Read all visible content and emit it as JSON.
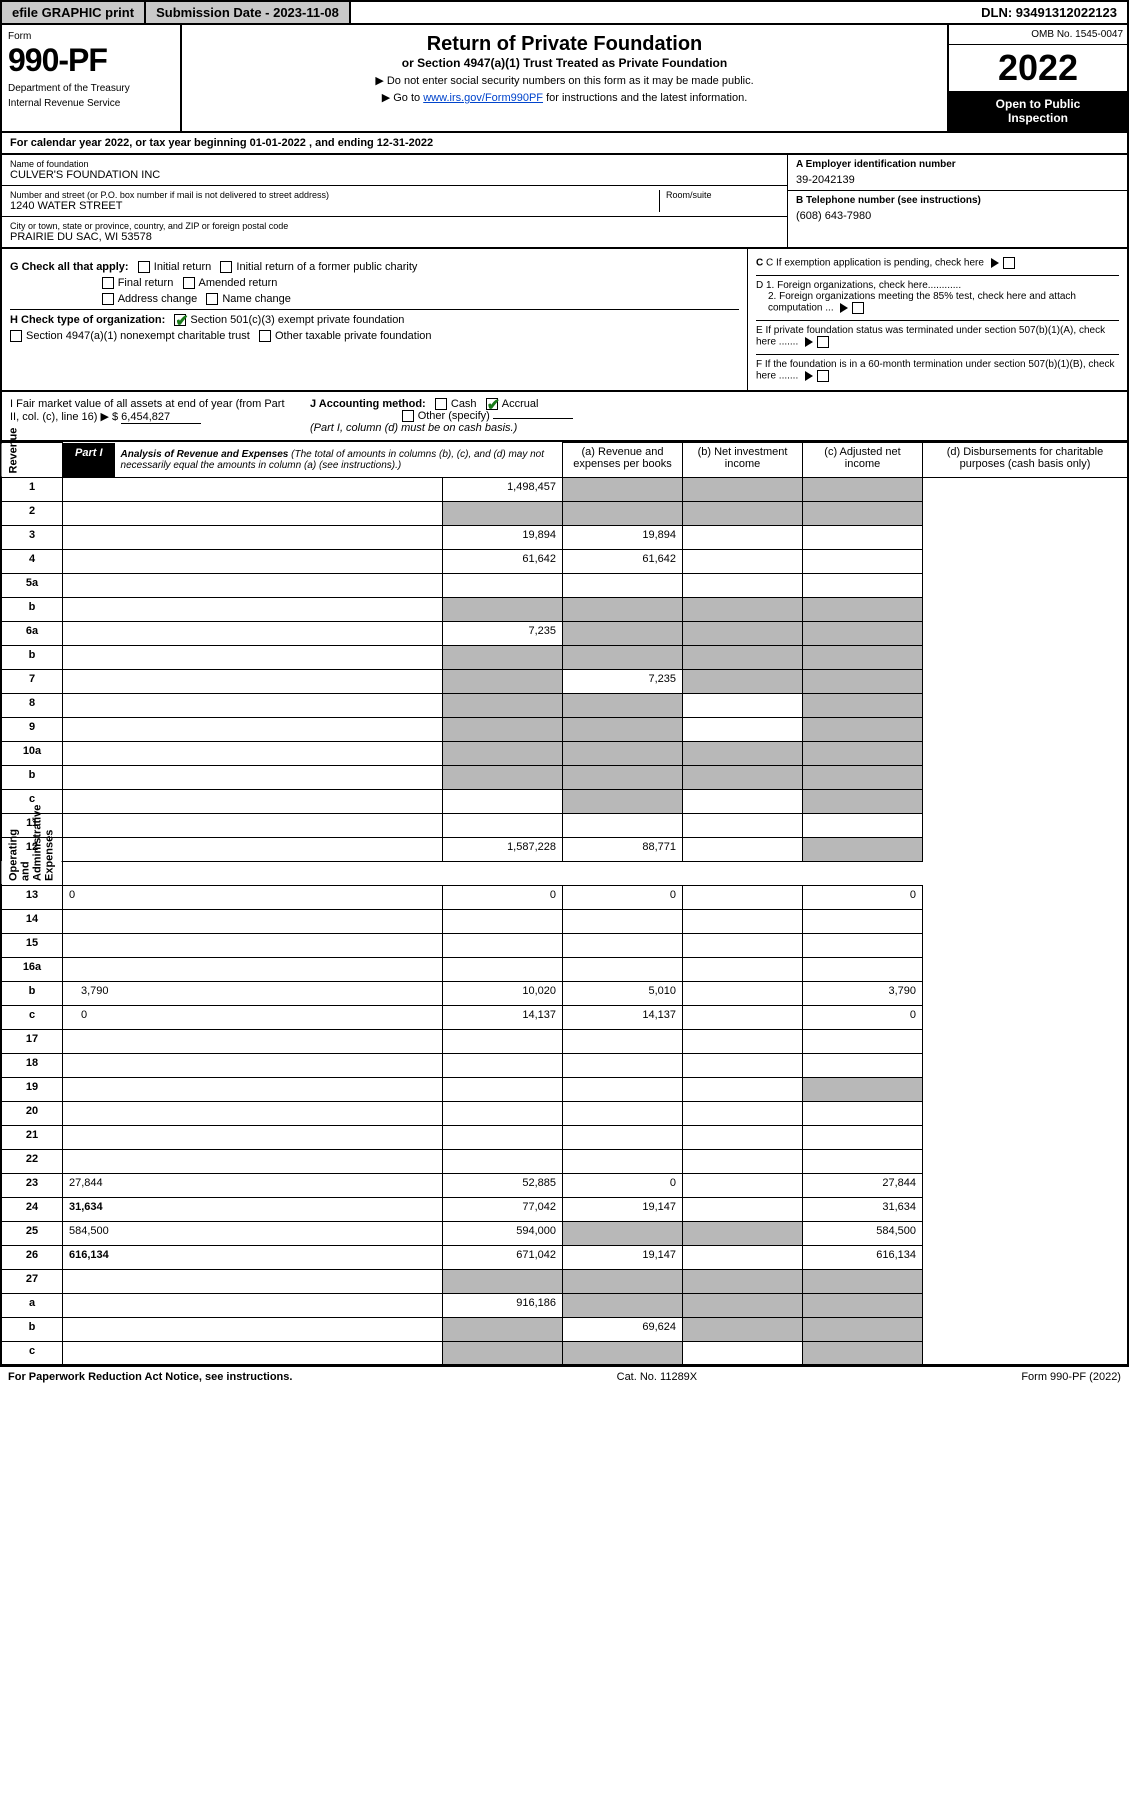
{
  "topbar": {
    "efile": "efile GRAPHIC print",
    "sub_date": "Submission Date - 2023-11-08",
    "dln": "DLN: 93491312022123"
  },
  "header": {
    "form_label": "Form",
    "form_num": "990-PF",
    "dept1": "Department of the Treasury",
    "dept2": "Internal Revenue Service",
    "title": "Return of Private Foundation",
    "subtitle": "or Section 4947(a)(1) Trust Treated as Private Foundation",
    "note1": "▶ Do not enter social security numbers on this form as it may be made public.",
    "note2_pre": "▶ Go to ",
    "note2_link": "www.irs.gov/Form990PF",
    "note2_post": " for instructions and the latest information.",
    "omb": "OMB No. 1545-0047",
    "year": "2022",
    "open1": "Open to Public",
    "open2": "Inspection"
  },
  "calendar": "For calendar year 2022, or tax year beginning 01-01-2022            , and ending 12-31-2022",
  "entity": {
    "name_label": "Name of foundation",
    "name": "CULVER'S FOUNDATION INC",
    "addr_label": "Number and street (or P.O. box number if mail is not delivered to street address)",
    "room_label": "Room/suite",
    "addr": "1240 WATER STREET",
    "city_label": "City or town, state or province, country, and ZIP or foreign postal code",
    "city": "PRAIRIE DU SAC, WI  53578",
    "ein_label": "A Employer identification number",
    "ein": "39-2042139",
    "tel_label": "B Telephone number (see instructions)",
    "tel": "(608) 643-7980",
    "c_label": "C If exemption application is pending, check here",
    "d1": "D 1. Foreign organizations, check here............",
    "d2": "2. Foreign organizations meeting the 85% test, check here and attach computation ...",
    "e_label": "E  If private foundation status was terminated under section 507(b)(1)(A), check here .......",
    "f_label": "F  If the foundation is in a 60-month termination under section 507(b)(1)(B), check here .......",
    "g_label": "G Check all that apply:",
    "g_opts": [
      "Initial return",
      "Initial return of a former public charity",
      "Final return",
      "Amended return",
      "Address change",
      "Name change"
    ],
    "h_label": "H Check type of organization:",
    "h_opt1": "Section 501(c)(3) exempt private foundation",
    "h_opt2": "Section 4947(a)(1) nonexempt charitable trust",
    "h_opt3": "Other taxable private foundation",
    "i_label": "I Fair market value of all assets at end of year (from Part II, col. (c), line 16) ▶ $",
    "i_val": "6,454,827",
    "j_label": "J Accounting method:",
    "j_cash": "Cash",
    "j_accrual": "Accrual",
    "j_other": "Other (specify)",
    "j_note": "(Part I, column (d) must be on cash basis.)"
  },
  "part1": {
    "label": "Part I",
    "title": "Analysis of Revenue and Expenses",
    "sub": "(The total of amounts in columns (b), (c), and (d) may not necessarily equal the amounts in column (a) (see instructions).)",
    "col_a": "(a)    Revenue and expenses per books",
    "col_b": "(b)    Net investment income",
    "col_c": "(c)    Adjusted net income",
    "col_d": "(d)   Disbursements for charitable purposes (cash basis only)"
  },
  "side": {
    "revenue": "Revenue",
    "expenses": "Operating and Administrative Expenses"
  },
  "rows": [
    {
      "n": "1",
      "d": "",
      "a": "1,498,457",
      "b": "",
      "c": "",
      "gray_bcd": true
    },
    {
      "n": "2",
      "d": "",
      "a": "",
      "b": "",
      "c": "",
      "gray_all": true
    },
    {
      "n": "3",
      "d": "",
      "a": "19,894",
      "b": "19,894",
      "c": ""
    },
    {
      "n": "4",
      "d": "",
      "a": "61,642",
      "b": "61,642",
      "c": ""
    },
    {
      "n": "5a",
      "d": "",
      "a": "",
      "b": "",
      "c": ""
    },
    {
      "n": "b",
      "d": "",
      "a": "",
      "b": "",
      "c": "",
      "gray_all": true,
      "indent": true
    },
    {
      "n": "6a",
      "d": "",
      "a": "7,235",
      "b": "",
      "c": "",
      "gray_bcd": true
    },
    {
      "n": "b",
      "d": "",
      "a": "",
      "b": "",
      "c": "",
      "gray_all": true,
      "indent": true
    },
    {
      "n": "7",
      "d": "",
      "a": "",
      "b": "7,235",
      "c": "",
      "gray_a": true,
      "gray_cd": true
    },
    {
      "n": "8",
      "d": "",
      "a": "",
      "b": "",
      "c": "",
      "gray_ab": true,
      "gray_d": true
    },
    {
      "n": "9",
      "d": "",
      "a": "",
      "b": "",
      "c": "",
      "gray_ab": true,
      "gray_d": true
    },
    {
      "n": "10a",
      "d": "",
      "a": "",
      "b": "",
      "c": "",
      "gray_all": true
    },
    {
      "n": "b",
      "d": "",
      "a": "",
      "b": "",
      "c": "",
      "gray_all": true,
      "indent": true
    },
    {
      "n": "c",
      "d": "",
      "a": "",
      "b": "",
      "c": "",
      "gray_b": true,
      "gray_d": true,
      "indent": true
    },
    {
      "n": "11",
      "d": "",
      "a": "",
      "b": "",
      "c": ""
    },
    {
      "n": "12",
      "d": "",
      "a": "1,587,228",
      "b": "88,771",
      "c": "",
      "bold": true,
      "gray_d": true
    }
  ],
  "exp_rows": [
    {
      "n": "13",
      "d": "0",
      "a": "0",
      "b": "0",
      "c": ""
    },
    {
      "n": "14",
      "d": "",
      "a": "",
      "b": "",
      "c": ""
    },
    {
      "n": "15",
      "d": "",
      "a": "",
      "b": "",
      "c": ""
    },
    {
      "n": "16a",
      "d": "",
      "a": "",
      "b": "",
      "c": ""
    },
    {
      "n": "b",
      "d": "3,790",
      "a": "10,020",
      "b": "5,010",
      "c": "",
      "indent": true
    },
    {
      "n": "c",
      "d": "0",
      "a": "14,137",
      "b": "14,137",
      "c": "",
      "indent": true
    },
    {
      "n": "17",
      "d": "",
      "a": "",
      "b": "",
      "c": ""
    },
    {
      "n": "18",
      "d": "",
      "a": "",
      "b": "",
      "c": ""
    },
    {
      "n": "19",
      "d": "",
      "a": "",
      "b": "",
      "c": "",
      "gray_d": true
    },
    {
      "n": "20",
      "d": "",
      "a": "",
      "b": "",
      "c": ""
    },
    {
      "n": "21",
      "d": "",
      "a": "",
      "b": "",
      "c": ""
    },
    {
      "n": "22",
      "d": "",
      "a": "",
      "b": "",
      "c": ""
    },
    {
      "n": "23",
      "d": "27,844",
      "a": "52,885",
      "b": "0",
      "c": ""
    },
    {
      "n": "24",
      "d": "31,634",
      "a": "77,042",
      "b": "19,147",
      "c": "",
      "bold": true
    },
    {
      "n": "25",
      "d": "584,500",
      "a": "594,000",
      "b": "",
      "c": "",
      "gray_bc": true
    },
    {
      "n": "26",
      "d": "616,134",
      "a": "671,042",
      "b": "19,147",
      "c": "",
      "bold": true
    },
    {
      "n": "27",
      "d": "",
      "a": "",
      "b": "",
      "c": "",
      "gray_all": true
    },
    {
      "n": "a",
      "d": "",
      "a": "916,186",
      "b": "",
      "c": "",
      "gray_bcd": true,
      "bold": true,
      "indent": true
    },
    {
      "n": "b",
      "d": "",
      "a": "",
      "b": "69,624",
      "c": "",
      "gray_a": true,
      "gray_cd": true,
      "bold": true,
      "indent": true
    },
    {
      "n": "c",
      "d": "",
      "a": "",
      "b": "",
      "c": "",
      "gray_ab": true,
      "gray_d": true,
      "bold": true,
      "indent": true
    }
  ],
  "footer": {
    "left": "For Paperwork Reduction Act Notice, see instructions.",
    "mid": "Cat. No. 11289X",
    "right": "Form 990-PF (2022)"
  }
}
